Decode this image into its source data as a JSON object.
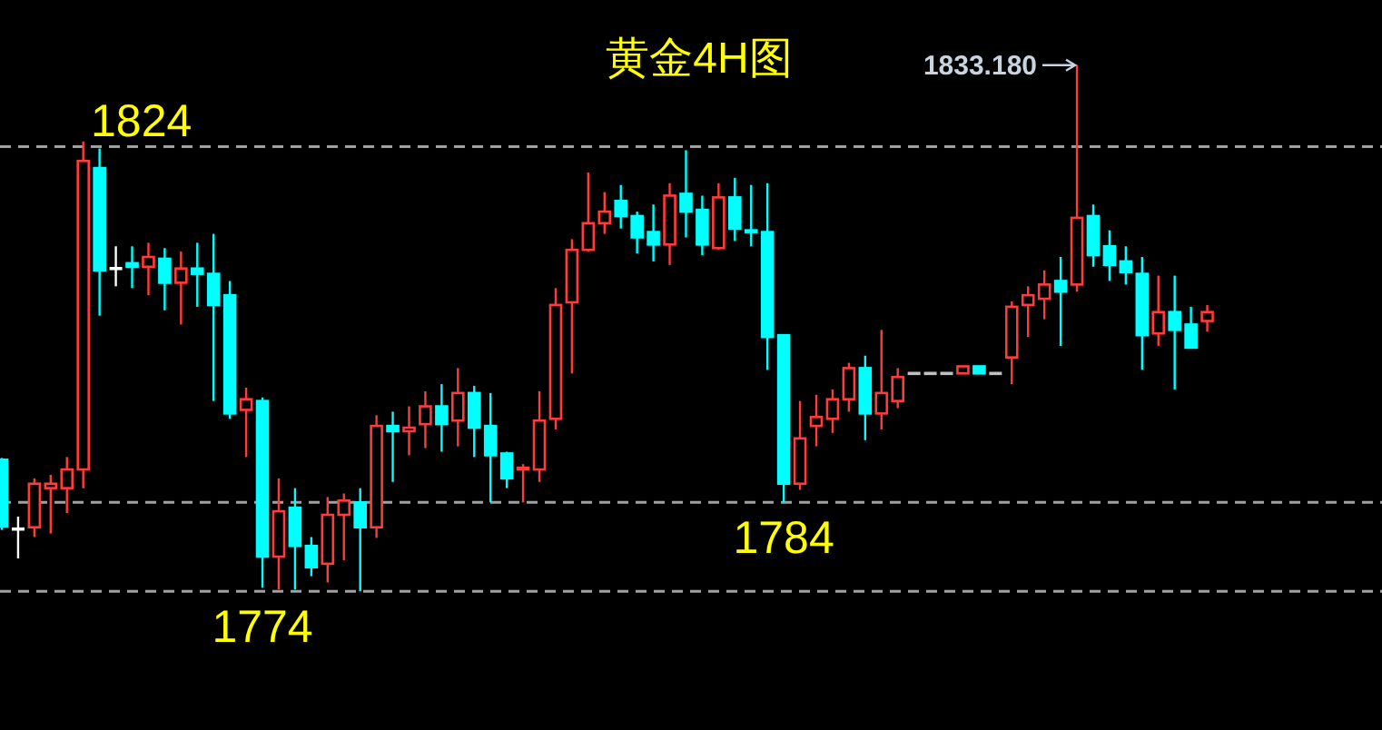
{
  "chart_data": {
    "type": "candlestick",
    "title": "黄金4H图",
    "categories": [
      null,
      null,
      null,
      null,
      null,
      null,
      null,
      null,
      null,
      null,
      null,
      null,
      null,
      null,
      null,
      null,
      null,
      null,
      null,
      null,
      null,
      null,
      null,
      null,
      null,
      null,
      null,
      null,
      null,
      null,
      null,
      null,
      null,
      null,
      null,
      null,
      null,
      null,
      null,
      null,
      null,
      null,
      null,
      null,
      null,
      null,
      null,
      null,
      null,
      null,
      null,
      null,
      null,
      null,
      null,
      null,
      null,
      null,
      null,
      null,
      null,
      null,
      null,
      null,
      null,
      null,
      null,
      null,
      null,
      null,
      null,
      null,
      null,
      null,
      null
    ],
    "ohlc": [
      [
        1788.8,
        1789.0,
        1780.9,
        1781.3
      ],
      [
        1781.0,
        1782.4,
        1777.7,
        1781.0
      ],
      [
        1781.2,
        1786.7,
        1780.1,
        1786.1
      ],
      [
        1785.6,
        1787.1,
        1780.5,
        1786.1
      ],
      [
        1785.6,
        1789.1,
        1782.8,
        1787.7
      ],
      [
        1787.7,
        1824.6,
        1785.6,
        1822.4
      ],
      [
        1821.6,
        1823.8,
        1805.0,
        1810.1
      ],
      [
        1810.3,
        1812.8,
        1808.3,
        1810.3
      ],
      [
        1810.9,
        1812.8,
        1808.1,
        1810.5
      ],
      [
        1810.5,
        1813.2,
        1807.3,
        1811.6
      ],
      [
        1811.4,
        1812.6,
        1805.6,
        1808.7
      ],
      [
        1808.7,
        1812.2,
        1804.0,
        1810.3
      ],
      [
        1810.3,
        1813.2,
        1806.0,
        1809.7
      ],
      [
        1809.7,
        1814.2,
        1795.4,
        1806.2
      ],
      [
        1807.3,
        1808.9,
        1793.4,
        1794.0
      ],
      [
        1794.4,
        1796.9,
        1789.1,
        1795.6
      ],
      [
        1795.4,
        1795.8,
        1774.4,
        1777.9
      ],
      [
        1777.9,
        1786.7,
        1774.2,
        1783.0
      ],
      [
        1783.4,
        1785.6,
        1774.2,
        1779.1
      ],
      [
        1779.1,
        1780.1,
        1775.7,
        1776.7
      ],
      [
        1777.1,
        1784.6,
        1775.0,
        1782.6
      ],
      [
        1782.6,
        1785.0,
        1777.5,
        1784.2
      ],
      [
        1784.0,
        1785.6,
        1774.0,
        1781.2
      ],
      [
        1781.2,
        1793.8,
        1780.0,
        1792.6
      ],
      [
        1792.6,
        1794.2,
        1786.3,
        1792.0
      ],
      [
        1792.0,
        1794.8,
        1789.3,
        1792.4
      ],
      [
        1792.8,
        1796.5,
        1790.1,
        1794.8
      ],
      [
        1794.8,
        1797.3,
        1789.7,
        1792.8
      ],
      [
        1793.2,
        1799.1,
        1790.3,
        1796.3
      ],
      [
        1796.3,
        1797.1,
        1789.1,
        1792.4
      ],
      [
        1792.6,
        1796.3,
        1784.0,
        1789.3
      ],
      [
        1789.5,
        1789.7,
        1785.6,
        1786.7
      ],
      [
        1787.7,
        1788.3,
        1784.0,
        1787.9
      ],
      [
        1787.7,
        1796.5,
        1786.3,
        1793.2
      ],
      [
        1793.4,
        1808.1,
        1792.2,
        1806.2
      ],
      [
        1806.5,
        1813.6,
        1798.5,
        1812.4
      ],
      [
        1812.4,
        1821.1,
        1812.2,
        1815.4
      ],
      [
        1815.4,
        1818.9,
        1814.2,
        1816.7
      ],
      [
        1817.9,
        1819.7,
        1814.8,
        1816.2
      ],
      [
        1816.2,
        1816.7,
        1812.0,
        1813.8
      ],
      [
        1814.4,
        1817.5,
        1811.1,
        1813.0
      ],
      [
        1813.0,
        1819.9,
        1810.7,
        1818.5
      ],
      [
        1818.7,
        1823.6,
        1813.8,
        1816.7
      ],
      [
        1816.9,
        1818.5,
        1811.8,
        1813.0
      ],
      [
        1812.6,
        1819.9,
        1812.4,
        1818.3
      ],
      [
        1818.3,
        1820.5,
        1813.4,
        1814.8
      ],
      [
        1814.6,
        1819.7,
        1812.8,
        1814.4
      ],
      [
        1814.4,
        1819.9,
        1798.9,
        1802.6
      ],
      [
        1802.8,
        1802.8,
        1784.0,
        1786.1
      ],
      [
        1786.1,
        1795.4,
        1785.4,
        1791.2
      ],
      [
        1792.6,
        1796.1,
        1790.3,
        1793.6
      ],
      [
        1793.4,
        1796.7,
        1791.8,
        1795.6
      ],
      [
        1795.6,
        1799.7,
        1794.2,
        1799.1
      ],
      [
        1799.1,
        1800.5,
        1791.0,
        1794.0
      ],
      [
        1794.0,
        1803.4,
        1792.2,
        1796.3
      ],
      [
        1795.4,
        1799.1,
        1794.6,
        1798.1
      ],
      [
        1798.5,
        1798.5,
        1798.5,
        1798.5
      ],
      [
        1798.5,
        1798.5,
        1798.5,
        1798.5
      ],
      [
        1798.5,
        1798.5,
        1798.5,
        1798.5
      ],
      [
        1798.5,
        1799.3,
        1798.5,
        1799.3
      ],
      [
        1799.3,
        1799.3,
        1798.5,
        1798.5
      ],
      [
        1798.5,
        1798.5,
        1798.5,
        1798.5
      ],
      [
        1800.3,
        1806.6,
        1797.3,
        1806.0
      ],
      [
        1806.2,
        1808.3,
        1802.6,
        1807.3
      ],
      [
        1806.9,
        1810.1,
        1804.6,
        1808.5
      ],
      [
        1808.9,
        1811.6,
        1801.6,
        1807.7
      ],
      [
        1808.5,
        1833.18,
        1807.7,
        1816.0
      ],
      [
        1816.2,
        1817.5,
        1810.5,
        1811.8
      ],
      [
        1812.8,
        1814.6,
        1808.9,
        1810.7
      ],
      [
        1811.1,
        1812.8,
        1808.5,
        1809.9
      ],
      [
        1809.7,
        1811.6,
        1798.9,
        1802.8
      ],
      [
        1803.0,
        1809.5,
        1801.6,
        1805.4
      ],
      [
        1805.4,
        1809.5,
        1796.7,
        1803.4
      ],
      [
        1804.0,
        1806.0,
        1801.4,
        1801.4
      ],
      [
        1804.4,
        1806.2,
        1803.2,
        1805.4
      ]
    ],
    "colors": [
      "#00ffff",
      "#ffffff",
      "#ff3b3b",
      "#ff3b3b",
      "#ff3b3b",
      "#ff3b3b",
      "#00ffff",
      "#ffffff",
      "#00ffff",
      "#ff3b3b",
      "#00ffff",
      "#ff3b3b",
      "#00ffff",
      "#00ffff",
      "#00ffff",
      "#ff3b3b",
      "#00ffff",
      "#ff3b3b",
      "#00ffff",
      "#00ffff",
      "#ff3b3b",
      "#ff3b3b",
      "#00ffff",
      "#ff3b3b",
      "#00ffff",
      "#ff3b3b",
      "#ff3b3b",
      "#00ffff",
      "#ff3b3b",
      "#00ffff",
      "#00ffff",
      "#00ffff",
      "#ff3b3b",
      "#ff3b3b",
      "#ff3b3b",
      "#ff3b3b",
      "#ff3b3b",
      "#ff3b3b",
      "#00ffff",
      "#00ffff",
      "#00ffff",
      "#ff3b3b",
      "#00ffff",
      "#00ffff",
      "#ff3b3b",
      "#00ffff",
      "#00ffff",
      "#00ffff",
      "#00ffff",
      "#ff3b3b",
      "#ff3b3b",
      "#ff3b3b",
      "#ff3b3b",
      "#00ffff",
      "#ff3b3b",
      "#ff3b3b",
      "#c0c0c0",
      "#c0c0c0",
      "#c0c0c0",
      "#ff3b3b",
      "#00ffff",
      "#c0c0c0",
      "#ff3b3b",
      "#ff3b3b",
      "#ff3b3b",
      "#00ffff",
      "#ff3b3b",
      "#00ffff",
      "#00ffff",
      "#00ffff",
      "#00ffff",
      "#ff3b3b",
      "#00ffff",
      "#00ffff",
      "#ff3b3b"
    ],
    "ylim": [
      1758.4,
      1840.5
    ],
    "ref_lines": [
      {
        "axis": "y",
        "value": 1824,
        "label": "1824",
        "color": "#a0a0a0",
        "line_style": "dashed"
      },
      {
        "axis": "y",
        "value": 1784,
        "label": "1784",
        "color": "#a0a0a0",
        "line_style": "dashed"
      },
      {
        "axis": "y",
        "value": 1774,
        "label": "1774",
        "color": "#a0a0a0",
        "line_style": "dashed"
      }
    ],
    "annotations": [
      "1833.180"
    ]
  }
}
